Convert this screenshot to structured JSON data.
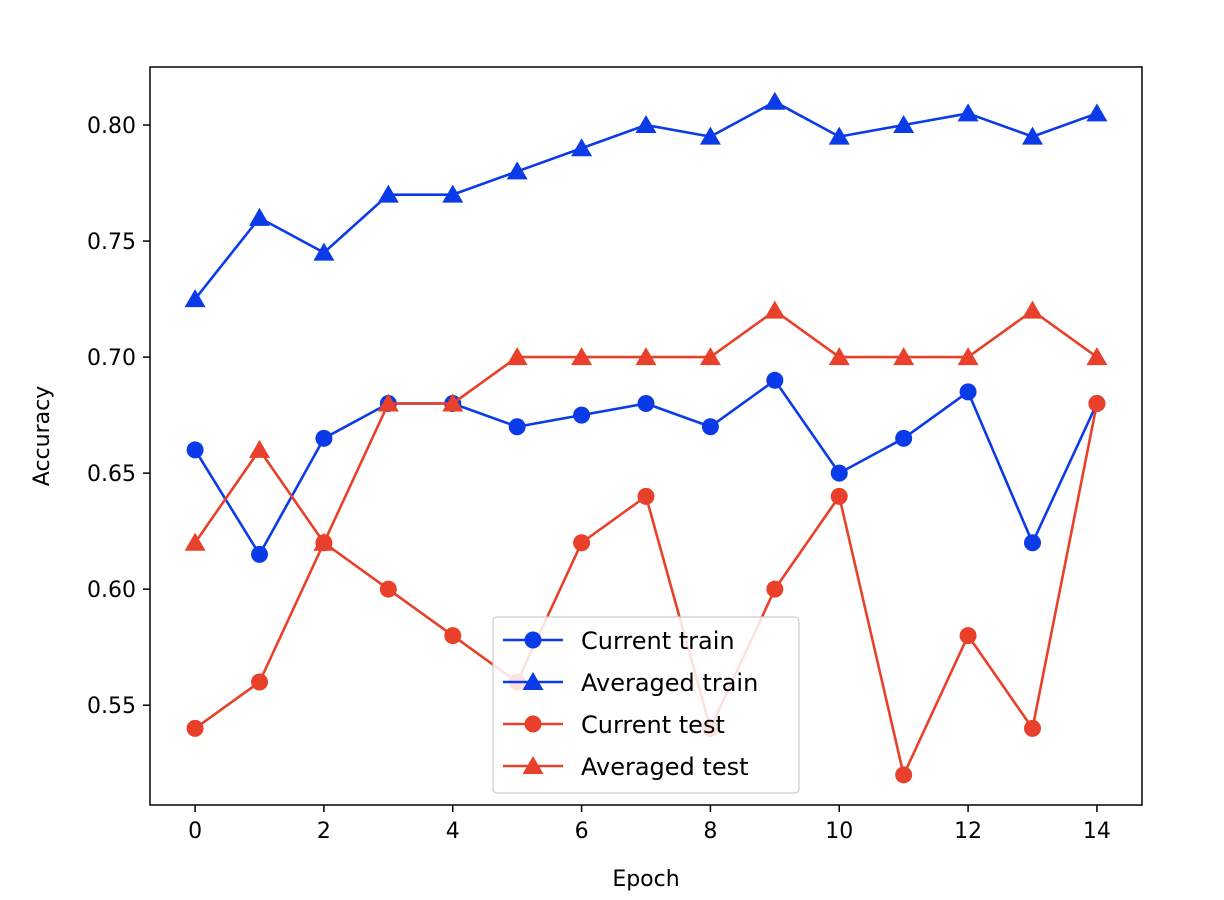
{
  "chart_data": {
    "type": "line",
    "xlabel": "Epoch",
    "ylabel": "Accuracy",
    "xlim": [
      -0.7,
      14.7
    ],
    "ylim": [
      0.507,
      0.825
    ],
    "xticks": [
      0,
      2,
      4,
      6,
      8,
      10,
      12,
      14
    ],
    "yticks": [
      0.55,
      0.6,
      0.65,
      0.7,
      0.75,
      0.8
    ],
    "ytick_labels": [
      "0.55",
      "0.60",
      "0.65",
      "0.70",
      "0.75",
      "0.80"
    ],
    "grid": false,
    "legend_position": "bottom-center",
    "x": [
      0,
      1,
      2,
      3,
      4,
      5,
      6,
      7,
      8,
      9,
      10,
      11,
      12,
      13,
      14
    ],
    "series": [
      {
        "name": "Current train",
        "color": "#0b3be8",
        "marker": "circle",
        "values": [
          0.66,
          0.615,
          0.665,
          0.68,
          0.68,
          0.67,
          0.675,
          0.68,
          0.67,
          0.69,
          0.65,
          0.665,
          0.685,
          0.62,
          0.68
        ]
      },
      {
        "name": "Averaged train",
        "color": "#0b3be8",
        "marker": "triangle",
        "values": [
          0.725,
          0.76,
          0.745,
          0.77,
          0.77,
          0.78,
          0.79,
          0.8,
          0.795,
          0.81,
          0.795,
          0.8,
          0.805,
          0.795,
          0.805
        ]
      },
      {
        "name": "Current test",
        "color": "#e8402a",
        "marker": "circle",
        "values": [
          0.54,
          0.56,
          0.62,
          0.6,
          0.58,
          0.56,
          0.62,
          0.64,
          0.54,
          0.6,
          0.64,
          0.52,
          0.58,
          0.54,
          0.68
        ]
      },
      {
        "name": "Averaged test",
        "color": "#e8402a",
        "marker": "triangle",
        "values": [
          0.62,
          0.66,
          0.62,
          0.68,
          0.68,
          0.7,
          0.7,
          0.7,
          0.7,
          0.72,
          0.7,
          0.7,
          0.7,
          0.72,
          0.7
        ]
      }
    ]
  }
}
